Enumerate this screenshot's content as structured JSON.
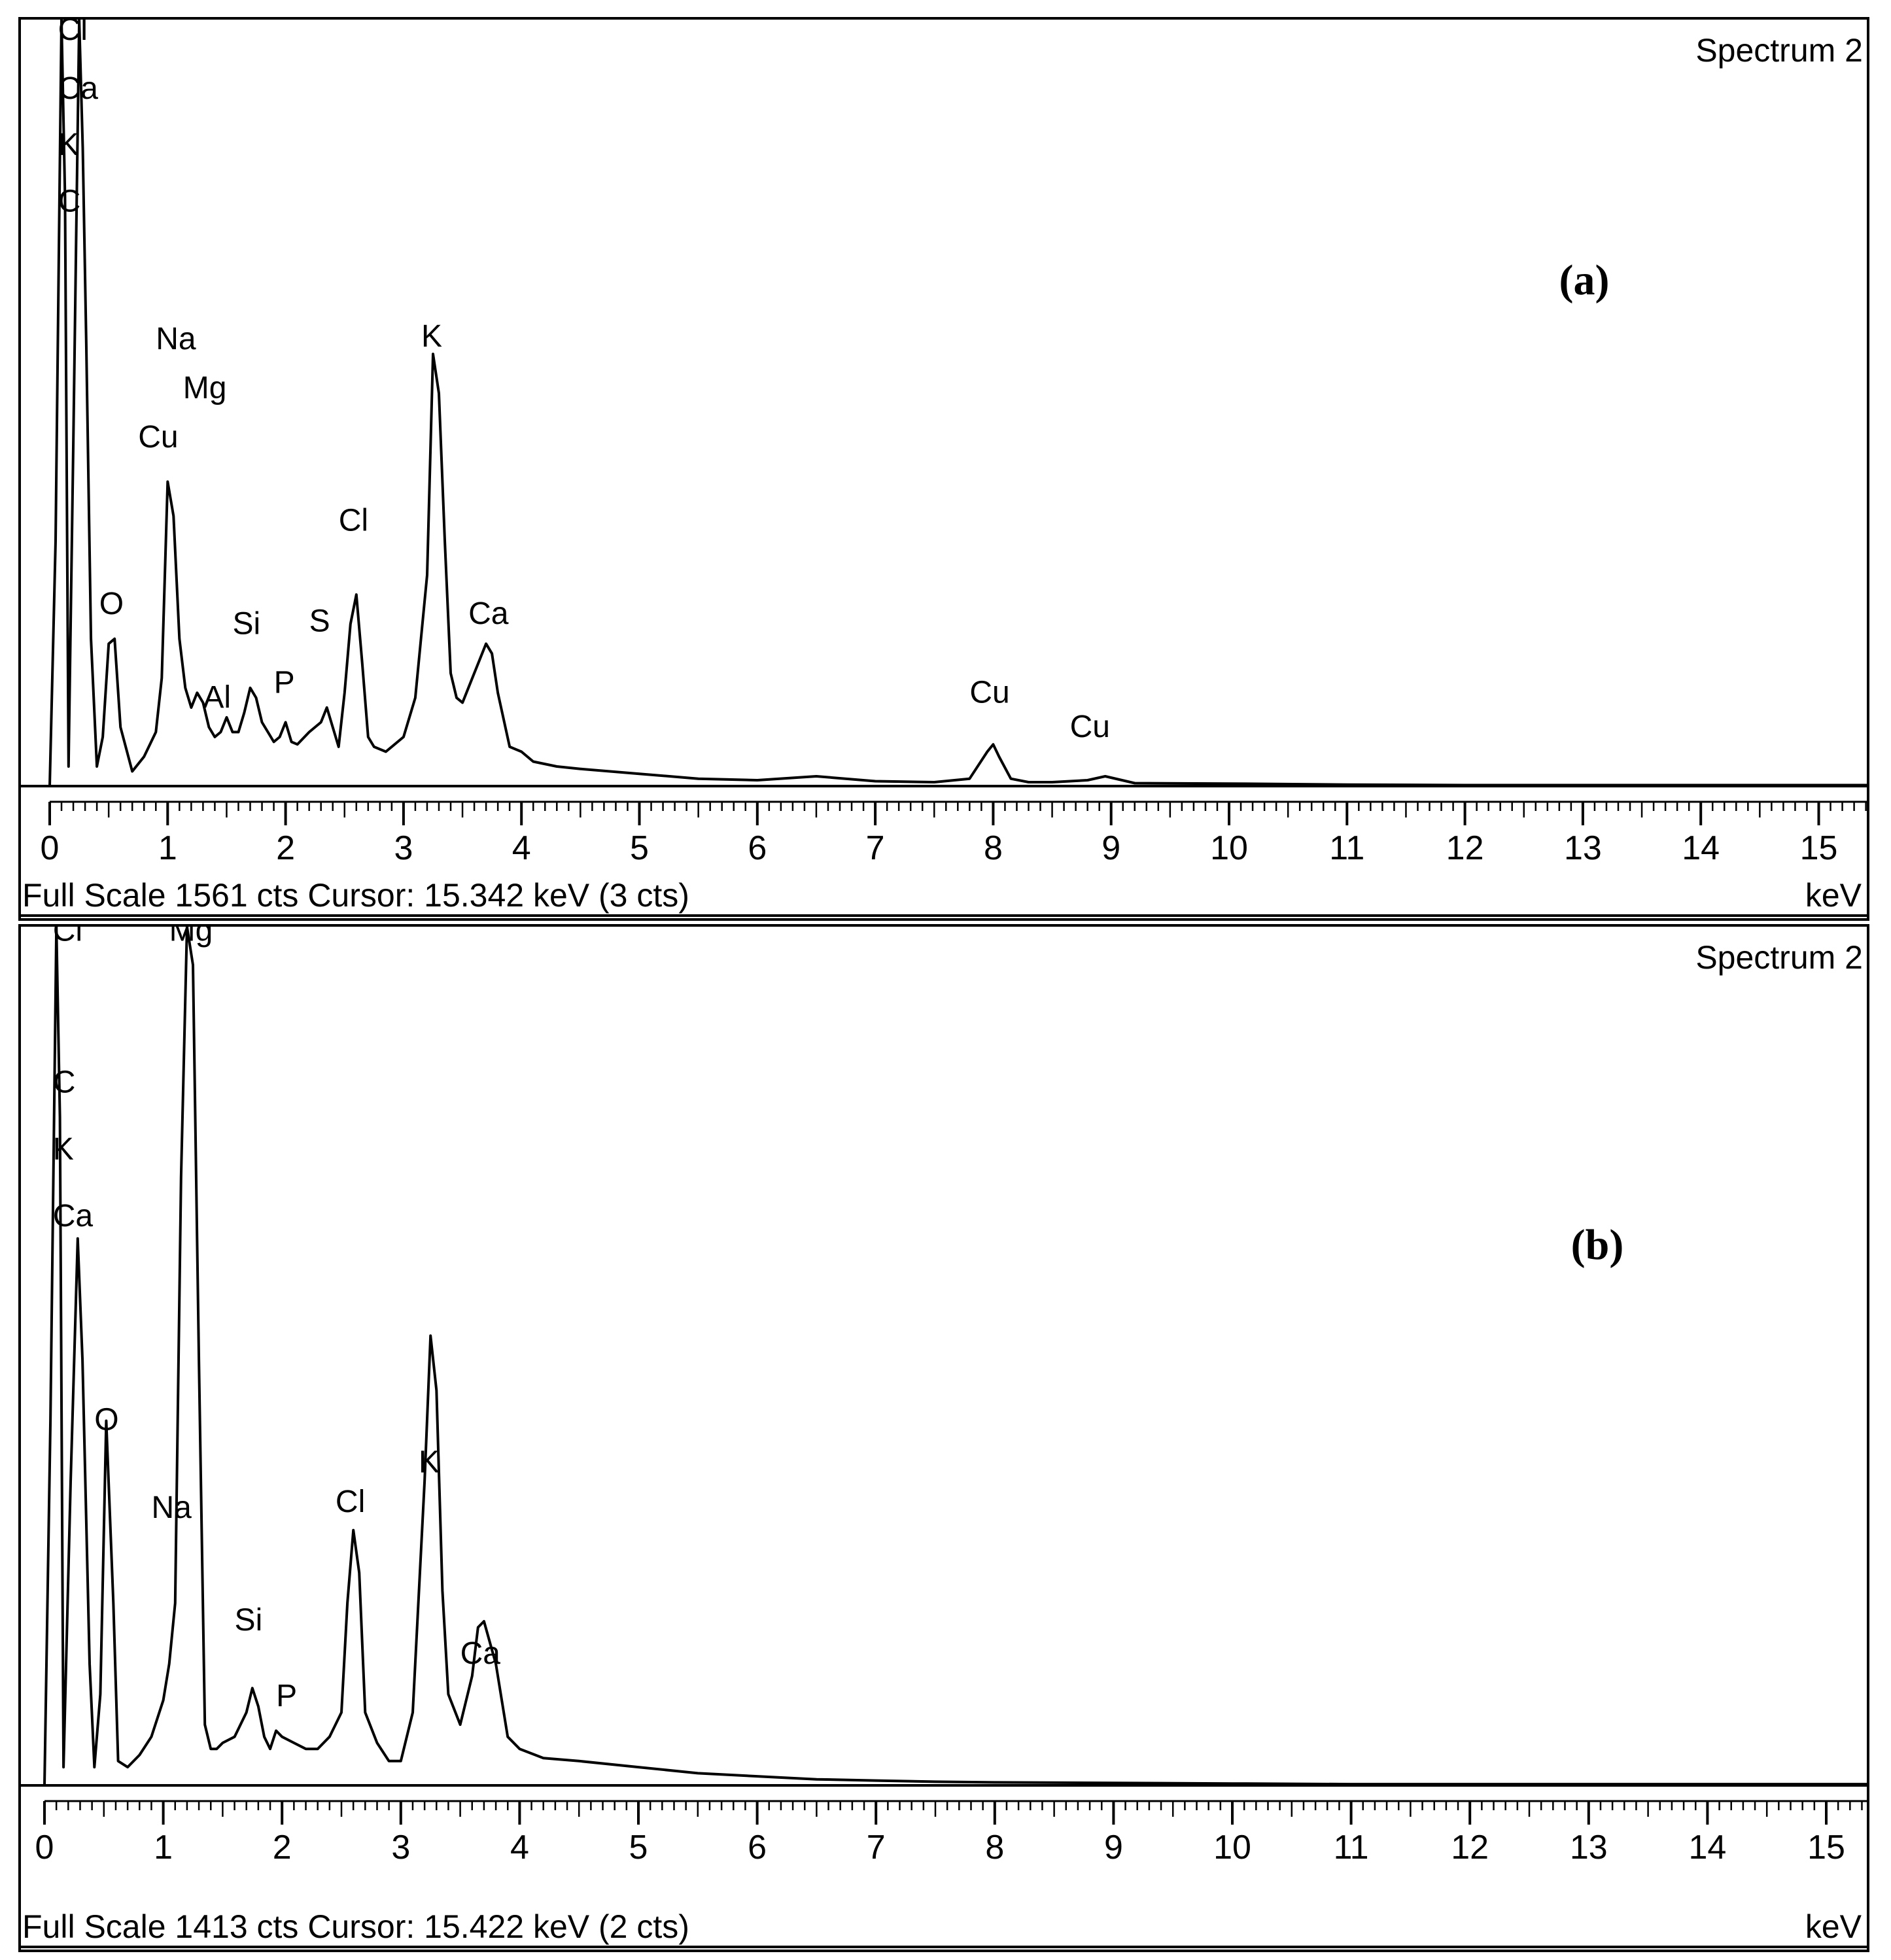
{
  "chart_data": [
    {
      "type": "line",
      "title": "Spectrum 2",
      "panel_label": "(a)",
      "xlabel": "keV",
      "footer": "Full Scale 1561 cts  Cursor: 15.342 keV (3 cts)",
      "xlim": [
        0,
        15.5
      ],
      "ylim": [
        0,
        1561
      ],
      "x_ticks": [
        "0",
        "1",
        "2",
        "3",
        "4",
        "5",
        "6",
        "7",
        "8",
        "9",
        "10",
        "11",
        "12",
        "13",
        "14",
        "15"
      ],
      "series": [
        {
          "x": [
            0.0,
            0.05,
            0.1,
            0.13,
            0.16,
            0.2,
            0.25,
            0.28,
            0.31,
            0.35,
            0.4,
            0.45,
            0.5,
            0.55,
            0.6,
            0.7,
            0.8,
            0.9,
            0.95,
            1.0,
            1.05,
            1.1,
            1.15,
            1.2,
            1.25,
            1.3,
            1.35,
            1.4,
            1.45,
            1.5,
            1.55,
            1.6,
            1.65,
            1.7,
            1.75,
            1.8,
            1.85,
            1.9,
            1.95,
            2.0,
            2.05,
            2.1,
            2.2,
            2.3,
            2.35,
            2.4,
            2.45,
            2.5,
            2.55,
            2.6,
            2.65,
            2.7,
            2.75,
            2.85,
            3.0,
            3.1,
            3.2,
            3.25,
            3.3,
            3.35,
            3.4,
            3.45,
            3.5,
            3.6,
            3.7,
            3.75,
            3.8,
            3.9,
            4.0,
            4.1,
            4.3,
            4.5,
            5.0,
            5.5,
            6.0,
            6.5,
            7.0,
            7.5,
            7.8,
            7.95,
            8.0,
            8.05,
            8.15,
            8.3,
            8.5,
            8.8,
            8.95,
            9.2,
            10.0,
            11.0,
            12.0,
            13.0,
            14.0,
            15.0,
            15.5
          ],
          "y": [
            0,
            500,
            1561,
            1200,
            40,
            700,
            1561,
            1300,
            900,
            300,
            40,
            100,
            290,
            300,
            120,
            30,
            60,
            110,
            220,
            620,
            550,
            300,
            200,
            160,
            190,
            170,
            120,
            100,
            110,
            140,
            110,
            110,
            150,
            200,
            180,
            130,
            110,
            90,
            100,
            130,
            90,
            85,
            110,
            130,
            160,
            120,
            80,
            190,
            330,
            390,
            250,
            100,
            80,
            70,
            100,
            180,
            430,
            880,
            800,
            500,
            230,
            180,
            170,
            230,
            290,
            270,
            190,
            80,
            70,
            50,
            40,
            35,
            25,
            15,
            12,
            20,
            10,
            8,
            15,
            70,
            85,
            60,
            15,
            8,
            8,
            12,
            20,
            6,
            5,
            3,
            2,
            2,
            2,
            2,
            2
          ]
        }
      ],
      "annotations": [
        {
          "text": "Cl",
          "x": 0.07,
          "y": 1520
        },
        {
          "text": "Ca",
          "x": 0.07,
          "y": 1400
        },
        {
          "text": "K",
          "x": 0.07,
          "y": 1285
        },
        {
          "text": "C",
          "x": 0.07,
          "y": 1170
        },
        {
          "text": "Na",
          "x": 0.9,
          "y": 890
        },
        {
          "text": "Mg",
          "x": 1.13,
          "y": 790
        },
        {
          "text": "Cu",
          "x": 0.75,
          "y": 690
        },
        {
          "text": "O",
          "x": 0.42,
          "y": 350
        },
        {
          "text": "Si",
          "x": 1.55,
          "y": 310
        },
        {
          "text": "Al",
          "x": 1.3,
          "y": 160
        },
        {
          "text": "P",
          "x": 1.9,
          "y": 190
        },
        {
          "text": "S",
          "x": 2.2,
          "y": 315
        },
        {
          "text": "Cl",
          "x": 2.45,
          "y": 520
        },
        {
          "text": "K",
          "x": 3.15,
          "y": 895
        },
        {
          "text": "Ca",
          "x": 3.55,
          "y": 330
        },
        {
          "text": "Cu",
          "x": 7.8,
          "y": 170
        },
        {
          "text": "Cu",
          "x": 8.65,
          "y": 100
        }
      ]
    },
    {
      "type": "line",
      "title": "Spectrum 2",
      "panel_label": "(b)",
      "xlabel": "keV",
      "footer": "Full Scale 1413 cts  Cursor: 15.422 keV (2 cts)",
      "xlim": [
        0,
        15.5
      ],
      "ylim": [
        0,
        1413
      ],
      "x_ticks": [
        "0",
        "1",
        "2",
        "3",
        "4",
        "5",
        "6",
        "7",
        "8",
        "9",
        "10",
        "11",
        "12",
        "13",
        "14",
        "15"
      ],
      "series": [
        {
          "x": [
            0.0,
            0.05,
            0.1,
            0.13,
            0.16,
            0.22,
            0.28,
            0.32,
            0.38,
            0.42,
            0.47,
            0.52,
            0.58,
            0.62,
            0.7,
            0.8,
            0.9,
            1.0,
            1.05,
            1.1,
            1.15,
            1.2,
            1.25,
            1.3,
            1.35,
            1.4,
            1.45,
            1.5,
            1.6,
            1.7,
            1.75,
            1.8,
            1.85,
            1.9,
            1.95,
            2.0,
            2.1,
            2.2,
            2.3,
            2.4,
            2.5,
            2.55,
            2.6,
            2.65,
            2.7,
            2.8,
            2.9,
            3.0,
            3.1,
            3.2,
            3.25,
            3.3,
            3.35,
            3.4,
            3.5,
            3.6,
            3.65,
            3.7,
            3.8,
            3.9,
            4.0,
            4.2,
            4.5,
            5.0,
            5.5,
            6.0,
            6.5,
            7.0,
            7.5,
            8.0,
            9.0,
            10.0,
            11.0,
            12.0,
            13.0,
            14.0,
            15.0,
            15.5
          ],
          "y": [
            0,
            600,
            1413,
            1100,
            30,
            500,
            900,
            700,
            200,
            30,
            150,
            600,
            300,
            40,
            30,
            50,
            80,
            140,
            200,
            300,
            1000,
            1413,
            1350,
            700,
            100,
            60,
            60,
            70,
            80,
            120,
            160,
            130,
            80,
            60,
            90,
            80,
            70,
            60,
            60,
            80,
            120,
            300,
            420,
            350,
            120,
            70,
            40,
            40,
            120,
            500,
            740,
            650,
            320,
            150,
            100,
            180,
            260,
            270,
            200,
            80,
            60,
            45,
            40,
            30,
            20,
            15,
            10,
            8,
            6,
            5,
            4,
            3,
            2,
            2,
            2,
            2,
            2,
            2
          ]
        }
      ],
      "annotations": [
        {
          "text": "Cl",
          "x": 0.07,
          "y": 1390
        },
        {
          "text": "C",
          "x": 0.07,
          "y": 1140
        },
        {
          "text": "K",
          "x": 0.07,
          "y": 1030
        },
        {
          "text": "Ca",
          "x": 0.07,
          "y": 920
        },
        {
          "text": "Mg",
          "x": 1.05,
          "y": 1390
        },
        {
          "text": "O",
          "x": 0.42,
          "y": 585
        },
        {
          "text": "Na",
          "x": 0.9,
          "y": 440
        },
        {
          "text": "Si",
          "x": 1.6,
          "y": 255
        },
        {
          "text": "P",
          "x": 1.95,
          "y": 130
        },
        {
          "text": "Cl",
          "x": 2.45,
          "y": 450
        },
        {
          "text": "K",
          "x": 3.15,
          "y": 515
        },
        {
          "text": "Ca",
          "x": 3.5,
          "y": 200
        }
      ]
    }
  ]
}
